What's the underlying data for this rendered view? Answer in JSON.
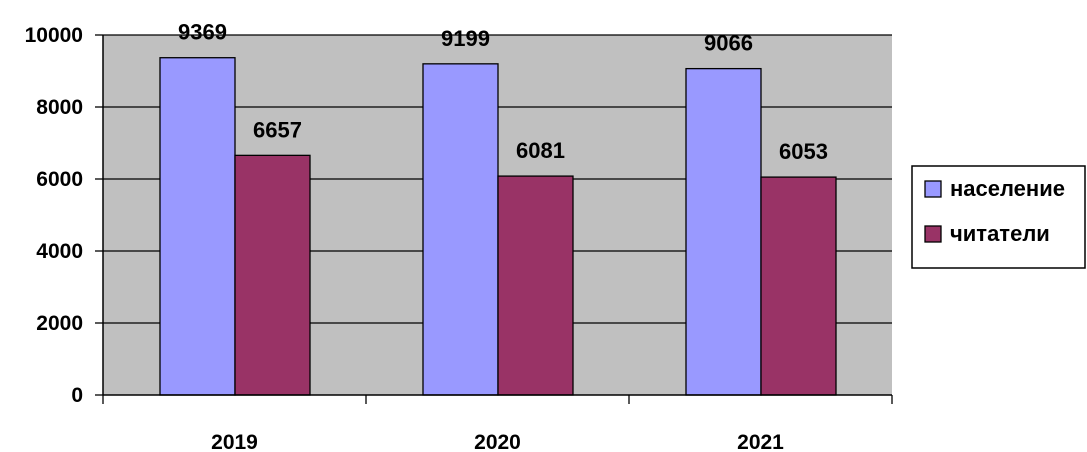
{
  "chart_data": {
    "type": "bar",
    "title": "",
    "xlabel": "",
    "ylabel": "",
    "categories": [
      "2019",
      "2020",
      "2021"
    ],
    "series": [
      {
        "name": "население",
        "values": [
          9369,
          9199,
          9066
        ],
        "color": "#9999ff"
      },
      {
        "name": "читатели",
        "values": [
          6657,
          6081,
          6053
        ],
        "color": "#993366"
      }
    ],
    "ylim": [
      0,
      10000
    ],
    "yticks": [
      0,
      2000,
      4000,
      6000,
      8000,
      10000
    ],
    "grid": true,
    "plot_background": "#c0c0c0",
    "legend_position": "right"
  }
}
